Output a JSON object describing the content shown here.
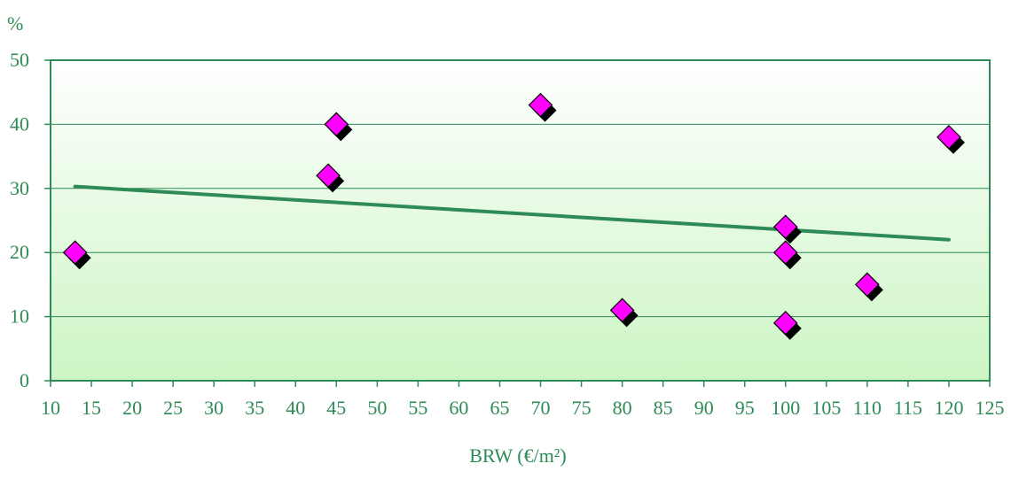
{
  "chart_data": {
    "type": "scatter",
    "title": "",
    "ylabel": "%",
    "xlabel": "BRW (€/m²)",
    "xlim": [
      10,
      125
    ],
    "ylim": [
      0,
      50
    ],
    "x_ticks": [
      10,
      15,
      20,
      25,
      30,
      35,
      40,
      45,
      50,
      55,
      60,
      65,
      70,
      75,
      80,
      85,
      90,
      95,
      100,
      105,
      110,
      115,
      120,
      125
    ],
    "y_ticks": [
      0,
      10,
      20,
      30,
      40,
      50
    ],
    "grid": "horizontal",
    "series": [
      {
        "marker": "diamond",
        "points": [
          {
            "x": 13,
            "y": 20
          },
          {
            "x": 44,
            "y": 32
          },
          {
            "x": 45,
            "y": 40
          },
          {
            "x": 70,
            "y": 43
          },
          {
            "x": 80,
            "y": 11
          },
          {
            "x": 100,
            "y": 24
          },
          {
            "x": 100,
            "y": 20
          },
          {
            "x": 100,
            "y": 9
          },
          {
            "x": 110,
            "y": 15
          },
          {
            "x": 120,
            "y": 38
          }
        ]
      }
    ],
    "trendline": {
      "type": "linear",
      "x_start": 13,
      "y_start": 30.3,
      "x_end": 120,
      "y_end": 22.0
    },
    "colors": {
      "axis": "#2e8b57",
      "grid": "#2e8b57",
      "trendline": "#2e8b57",
      "marker_fill": "#ff00ff",
      "marker_shadow": "#000000",
      "plot_bg_top": "#ffffff",
      "plot_bg_bottom": "#ccf5c4"
    }
  }
}
